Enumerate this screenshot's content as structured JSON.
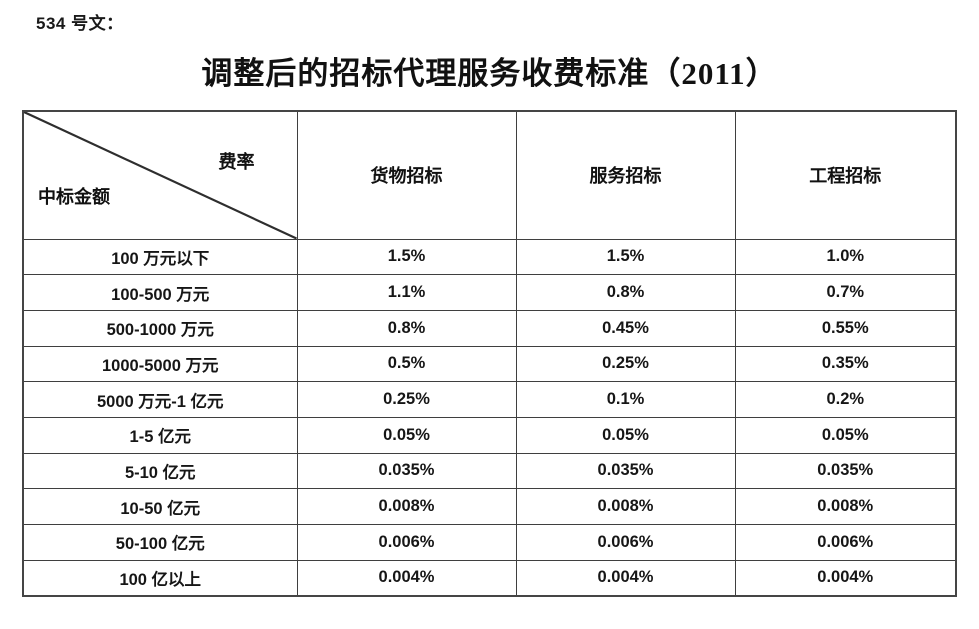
{
  "page": {
    "doc_ref": "534 号文：",
    "title": "调整后的招标代理服务收费标准（2011）"
  },
  "table": {
    "corner": {
      "top_right": "费率",
      "bottom_left": "中标金额"
    },
    "columns": [
      "货物招标",
      "服务招标",
      "工程招标"
    ],
    "rows": [
      {
        "label": "100 万元以下",
        "values": [
          "1.5%",
          "1.5%",
          "1.0%"
        ]
      },
      {
        "label": "100-500 万元",
        "values": [
          "1.1%",
          "0.8%",
          "0.7%"
        ]
      },
      {
        "label": "500-1000 万元",
        "values": [
          "0.8%",
          "0.45%",
          "0.55%"
        ]
      },
      {
        "label": "1000-5000 万元",
        "values": [
          "0.5%",
          "0.25%",
          "0.35%"
        ]
      },
      {
        "label": "5000 万元-1 亿元",
        "values": [
          "0.25%",
          "0.1%",
          "0.2%"
        ]
      },
      {
        "label": "1-5 亿元",
        "values": [
          "0.05%",
          "0.05%",
          "0.05%"
        ]
      },
      {
        "label": "5-10 亿元",
        "values": [
          "0.035%",
          "0.035%",
          "0.035%"
        ]
      },
      {
        "label": "10-50 亿元",
        "values": [
          "0.008%",
          "0.008%",
          "0.008%"
        ]
      },
      {
        "label": "50-100 亿元",
        "values": [
          "0.006%",
          "0.006%",
          "0.006%"
        ]
      },
      {
        "label": "100 亿以上",
        "values": [
          "0.004%",
          "0.004%",
          "0.004%"
        ]
      }
    ]
  }
}
